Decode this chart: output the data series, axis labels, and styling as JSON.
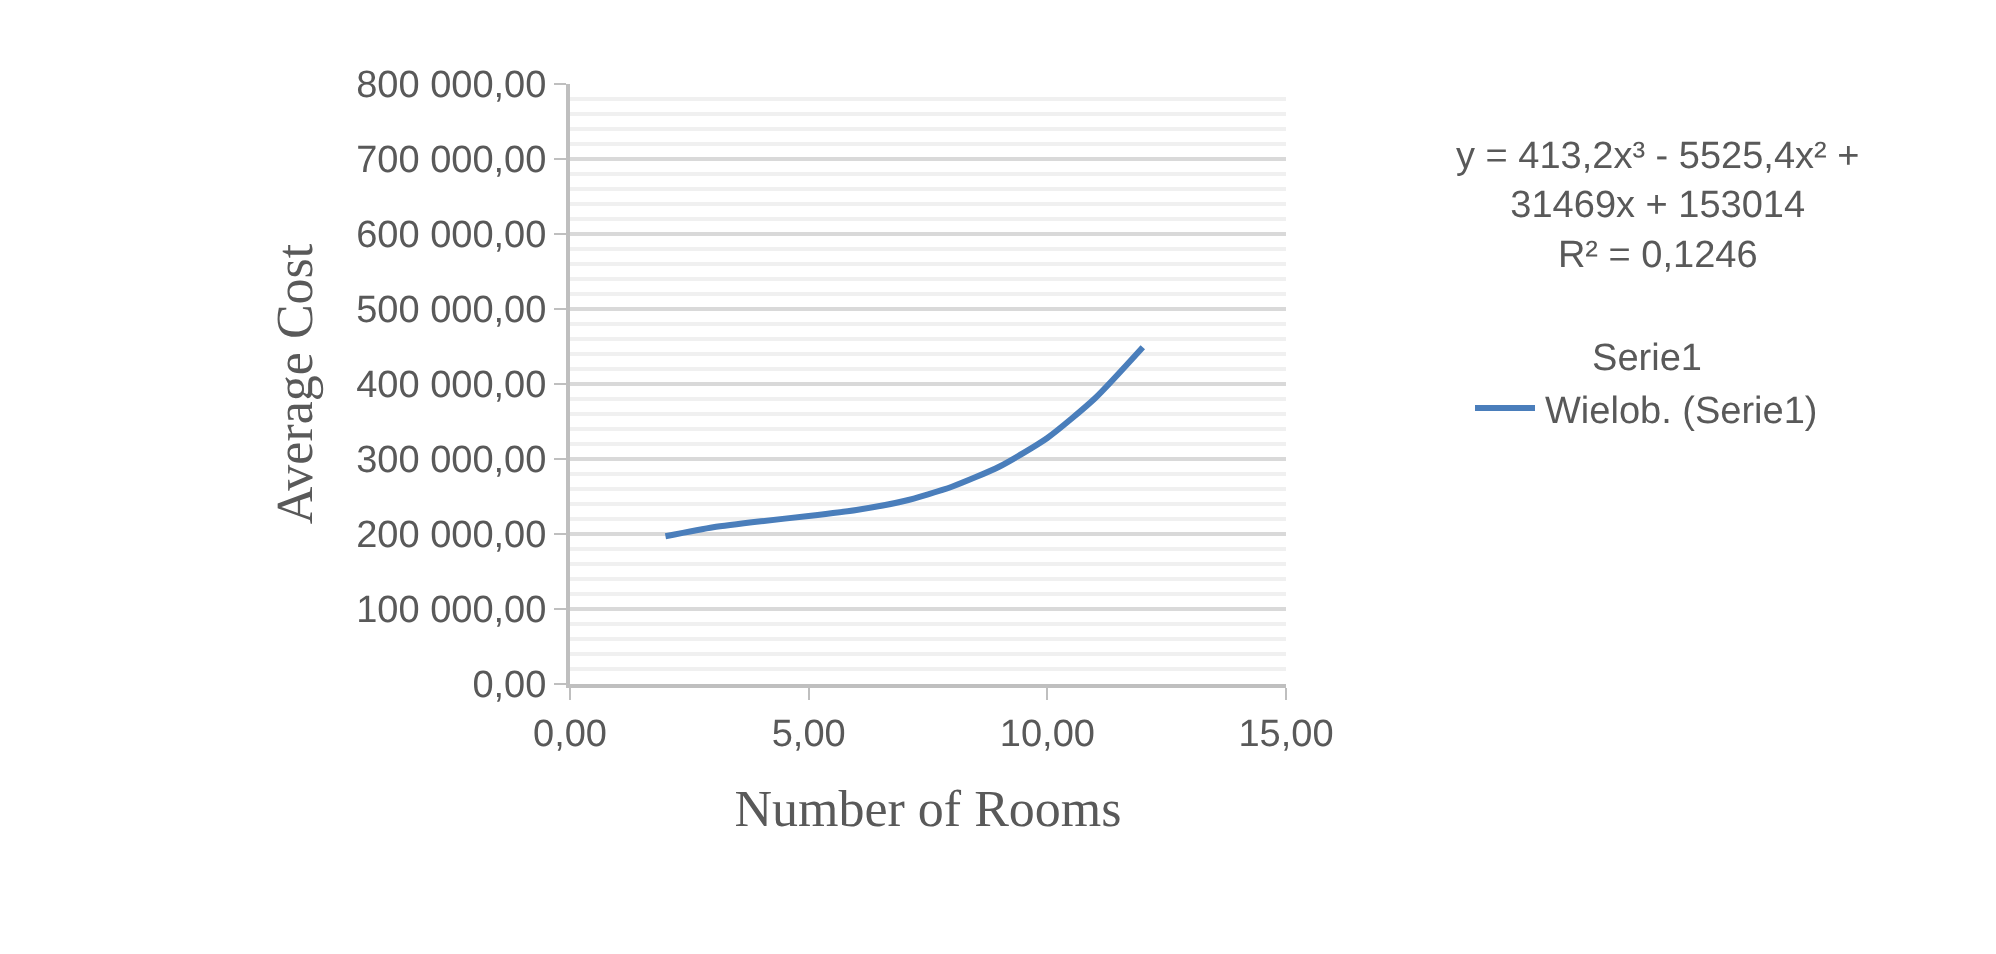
{
  "chart_data": {
    "type": "line",
    "xlabel": "Number of Rooms",
    "ylabel": "Average Cost",
    "legend_title": "Serie1",
    "series": [
      {
        "name": "Wielob. (Serie1)",
        "color": "#4a7ebb",
        "x": [
          2,
          3,
          4,
          5,
          6,
          7,
          8,
          9,
          10,
          11,
          12
        ],
        "values": [
          197000,
          209000,
          217000,
          224000,
          232000,
          244000,
          263000,
          290000,
          328000,
          381000,
          449000
        ]
      }
    ],
    "annotations": [
      "y = 413,2x³ - 5525,4x² +\n31469x + 153014\nR² = 0,1246"
    ],
    "xlim": [
      0,
      15
    ],
    "xticks": [
      {
        "value": 0,
        "label": "0,00"
      },
      {
        "value": 5,
        "label": "5,00"
      },
      {
        "value": 10,
        "label": "10,00"
      },
      {
        "value": 15,
        "label": "15,00"
      }
    ],
    "ylim": [
      0,
      800000
    ],
    "yticks": [
      {
        "value": 0,
        "label": "0,00"
      },
      {
        "value": 100000,
        "label": "100 000,00"
      },
      {
        "value": 200000,
        "label": "200 000,00"
      },
      {
        "value": 300000,
        "label": "300 000,00"
      },
      {
        "value": 400000,
        "label": "400 000,00"
      },
      {
        "value": 500000,
        "label": "500 000,00"
      },
      {
        "value": 600000,
        "label": "600 000,00"
      },
      {
        "value": 700000,
        "label": "700 000,00"
      },
      {
        "value": 800000,
        "label": "800 000,00"
      }
    ],
    "grid": "y",
    "legend": "right",
    "marker": "none",
    "line_style": "solid"
  }
}
